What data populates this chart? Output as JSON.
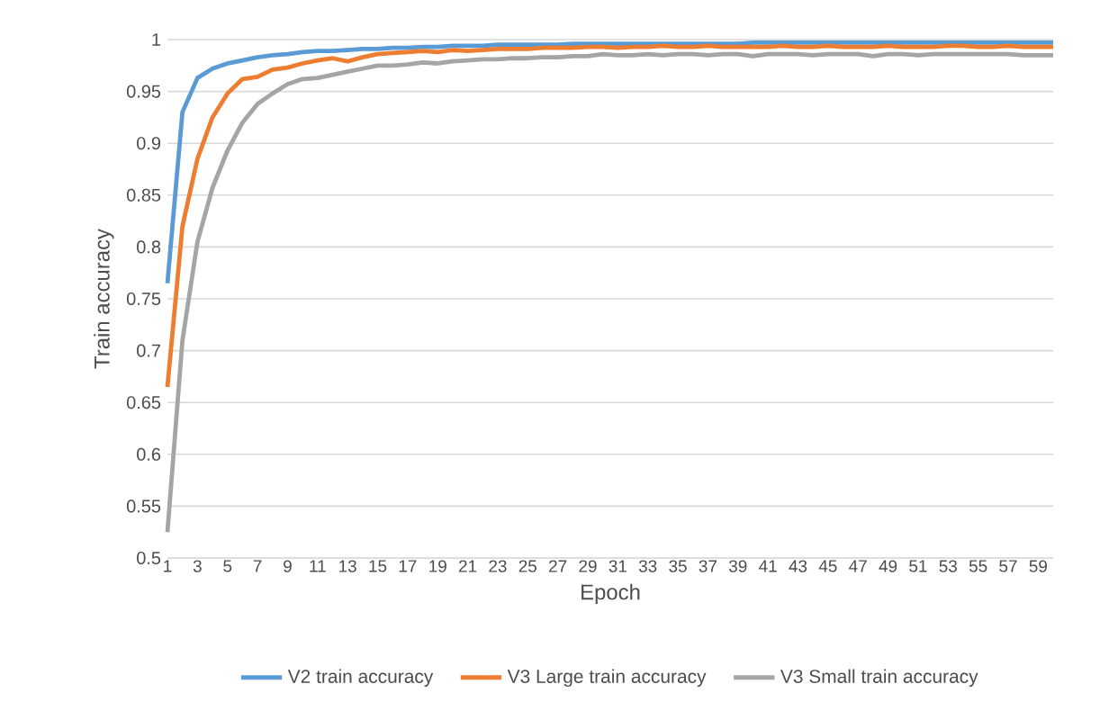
{
  "chart_data": {
    "type": "line",
    "xlabel": "Epoch",
    "ylabel": "Train accuracy",
    "categories": [
      "1",
      null,
      "3",
      null,
      "5",
      null,
      "7",
      null,
      "9",
      null,
      "11",
      null,
      "13",
      null,
      "15",
      null,
      "17",
      null,
      "19",
      null,
      "21",
      null,
      "23",
      null,
      "25",
      null,
      "27",
      null,
      "29",
      null,
      "31",
      null,
      "33",
      null,
      "35",
      null,
      "37",
      null,
      "39",
      null,
      "41",
      null,
      "43",
      null,
      "45",
      null,
      "47",
      null,
      "49",
      null,
      "51",
      null,
      "53",
      null,
      "55",
      null,
      "57",
      null,
      "59",
      null
    ],
    "ylim": [
      0.5,
      1
    ],
    "yticks": [
      0.5,
      0.55,
      0.6,
      0.65,
      0.7,
      0.75,
      0.8,
      0.85,
      0.9,
      0.95,
      1
    ],
    "grid": "y",
    "legend": "bottom",
    "marker": "none",
    "line_style": "solid",
    "series": [
      {
        "name": "V2 train accuracy",
        "color": "#5b9bd5",
        "values": [
          0.765,
          0.93,
          0.963,
          0.972,
          0.977,
          0.98,
          0.983,
          0.985,
          0.986,
          0.988,
          0.989,
          0.989,
          0.99,
          0.991,
          0.991,
          0.992,
          0.992,
          0.993,
          0.993,
          0.994,
          0.994,
          0.994,
          0.995,
          0.995,
          0.995,
          0.995,
          0.995,
          0.996,
          0.996,
          0.996,
          0.996,
          0.996,
          0.996,
          0.996,
          0.996,
          0.996,
          0.996,
          0.996,
          0.996,
          0.997,
          0.997,
          0.997,
          0.997,
          0.997,
          0.997,
          0.997,
          0.997,
          0.997,
          0.997,
          0.997,
          0.997,
          0.997,
          0.997,
          0.997,
          0.997,
          0.997,
          0.997,
          0.997,
          0.997,
          0.997
        ]
      },
      {
        "name": "V3 Large train accuracy",
        "color": "#ed7d31",
        "values": [
          0.665,
          0.82,
          0.885,
          0.925,
          0.948,
          0.962,
          0.964,
          0.971,
          0.973,
          0.977,
          0.98,
          0.982,
          0.979,
          0.983,
          0.986,
          0.987,
          0.988,
          0.989,
          0.988,
          0.99,
          0.989,
          0.99,
          0.991,
          0.991,
          0.991,
          0.992,
          0.992,
          0.992,
          0.993,
          0.993,
          0.992,
          0.993,
          0.993,
          0.994,
          0.993,
          0.993,
          0.994,
          0.993,
          0.993,
          0.993,
          0.993,
          0.994,
          0.993,
          0.993,
          0.994,
          0.993,
          0.993,
          0.993,
          0.994,
          0.993,
          0.993,
          0.993,
          0.994,
          0.994,
          0.993,
          0.993,
          0.994,
          0.993,
          0.993,
          0.993
        ]
      },
      {
        "name": "V3 Small train accuracy",
        "color": "#a5a5a5",
        "values": [
          0.525,
          0.71,
          0.805,
          0.857,
          0.893,
          0.92,
          0.938,
          0.948,
          0.957,
          0.962,
          0.963,
          0.966,
          0.969,
          0.972,
          0.975,
          0.975,
          0.976,
          0.978,
          0.977,
          0.979,
          0.98,
          0.981,
          0.981,
          0.982,
          0.982,
          0.983,
          0.983,
          0.984,
          0.984,
          0.986,
          0.985,
          0.985,
          0.986,
          0.985,
          0.986,
          0.986,
          0.985,
          0.986,
          0.986,
          0.984,
          0.986,
          0.986,
          0.986,
          0.985,
          0.986,
          0.986,
          0.986,
          0.984,
          0.986,
          0.986,
          0.985,
          0.986,
          0.986,
          0.986,
          0.986,
          0.986,
          0.986,
          0.985,
          0.985,
          0.985
        ]
      }
    ]
  }
}
